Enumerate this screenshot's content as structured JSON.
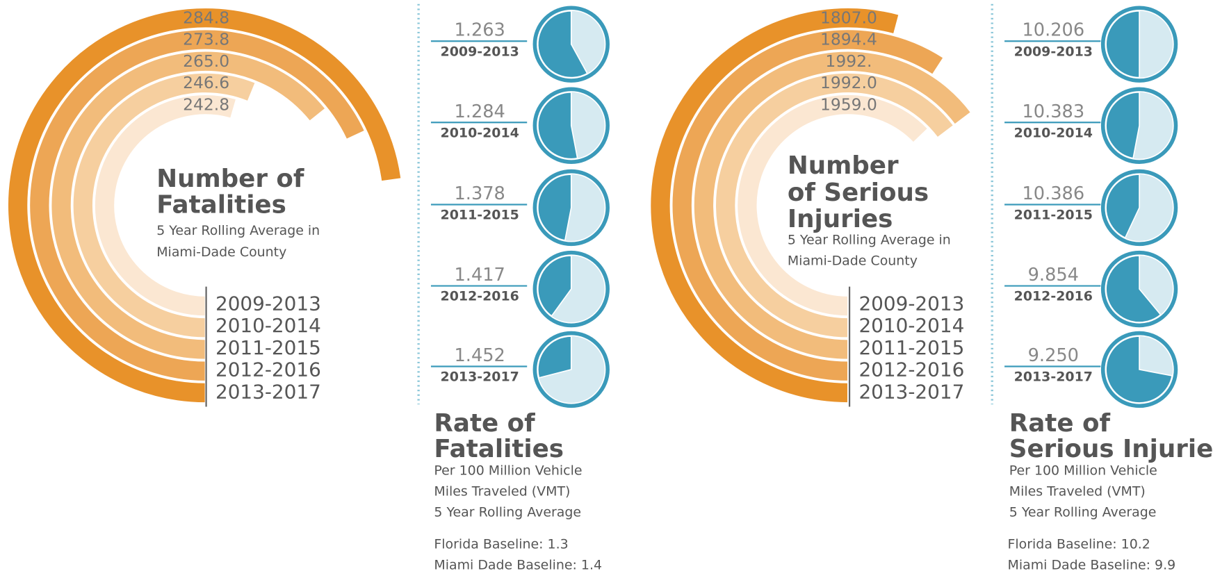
{
  "chart_data": [
    {
      "type": "radial_bar",
      "title": [
        "Number of",
        "Fatalities"
      ],
      "subtitle": [
        "5 Year Rolling Average in",
        "Miami-Dade County"
      ],
      "categories": [
        "2009-2013",
        "2010-2014",
        "2011-2015",
        "2012-2016",
        "2013-2017"
      ],
      "values": [
        242.8,
        246.6,
        265.0,
        273.8,
        284.8
      ],
      "value_labels": [
        "242.8",
        "246.6",
        "265.0",
        "273.8",
        "284.8"
      ],
      "colors": [
        "#fbe7d2",
        "#f6cf9f",
        "#f2bc7b",
        "#eda655",
        "#e8922a"
      ],
      "rlim": [
        118,
        347
      ]
    },
    {
      "type": "pie_column",
      "title": [
        "Rate of",
        "Fatalities"
      ],
      "subtitle": [
        "Per 100 Million Vehicle",
        "Miles Traveled (VMT)",
        "5 Year Rolling Average"
      ],
      "notes": [
        "Florida Baseline: 1.3",
        "Miami Dade Baseline: 1.4"
      ],
      "categories": [
        "2009-2013",
        "2010-2014",
        "2011-2015",
        "2012-2016",
        "2013-2017"
      ],
      "values": [
        1.263,
        1.284,
        1.378,
        1.417,
        1.452
      ],
      "value_labels": [
        "1.263",
        "1.284",
        "1.378",
        "1.417",
        "1.452"
      ],
      "shares": [
        58,
        53,
        47,
        40,
        29
      ],
      "colors": [
        "#3a9aba",
        "#d6eaf1"
      ]
    },
    {
      "type": "radial_bar",
      "title": [
        "Number",
        "of Serious",
        "Injuries"
      ],
      "subtitle": [
        "5 Year Rolling Average in",
        "Miami-Dade County"
      ],
      "categories": [
        "2009-2013",
        "2010-2014",
        "2011-2015",
        "2012-2016",
        "2013-2017"
      ],
      "values": [
        1959.0,
        1992.0,
        1992,
        1894.4,
        1807.0
      ],
      "value_labels": [
        "1959.0",
        "1992.0",
        "1992.",
        "1894.4",
        "1807.0"
      ],
      "colors": [
        "#fbe7d2",
        "#f6cf9f",
        "#f2bc7b",
        "#eda655",
        "#e8922a"
      ],
      "rlim": [
        856,
        2612
      ]
    },
    {
      "type": "pie_column",
      "title": [
        "Rate of",
        "Serious Injuries"
      ],
      "subtitle": [
        "Per 100 Million Vehicle",
        "Miles Traveled (VMT)",
        "5 Year Rolling Average"
      ],
      "notes": [
        "Florida Baseline: 10.2",
        "Miami Dade Baseline: 9.9"
      ],
      "categories": [
        "2009-2013",
        "2010-2014",
        "2011-2015",
        "2012-2016",
        "2013-2017"
      ],
      "values": [
        10.206,
        10.383,
        10.386,
        9.854,
        9.25
      ],
      "value_labels": [
        "10.206",
        "10.383",
        "10.386",
        "9.854",
        "9.250"
      ],
      "shares": [
        50,
        47,
        43,
        61,
        72
      ],
      "colors": [
        "#3a9aba",
        "#d6eaf1"
      ]
    }
  ]
}
